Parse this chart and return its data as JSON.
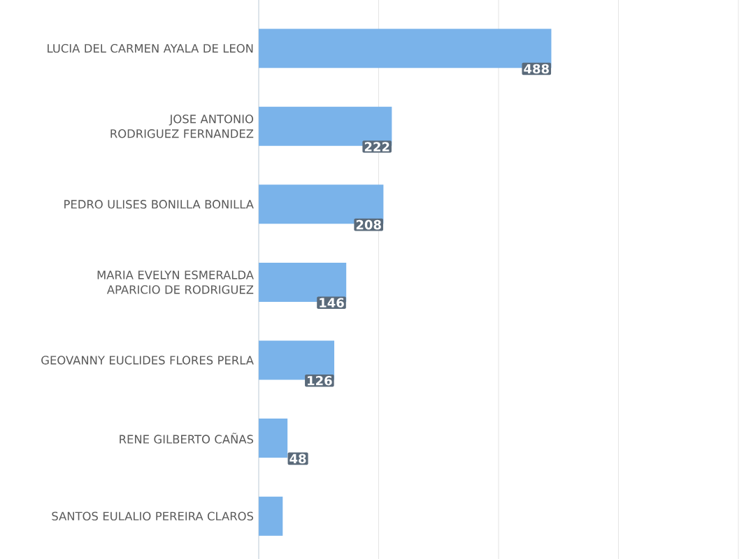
{
  "chart_data": {
    "type": "bar",
    "orientation": "horizontal",
    "categories": [
      "LUCIA DEL CARMEN AYALA DE LEON",
      "JOSE ANTONIO RODRIGUEZ FERNANDEZ",
      "PEDRO ULISES BONILLA BONILLA",
      "MARIA EVELYN ESMERALDA APARICIO DE RODRIGUEZ",
      "GEOVANNY EUCLIDES FLORES PERLA",
      "RENE GILBERTO CAÑAS",
      "SANTOS EULALIO PEREIRA CLAROS"
    ],
    "values": [
      488,
      222,
      208,
      146,
      126,
      48,
      40
    ],
    "value_labels": [
      "488",
      "222",
      "208",
      "146",
      "126",
      "48",
      null
    ],
    "color": "#7ab3ea",
    "xlim": [
      0,
      800
    ],
    "xticks": [
      {
        "value": 0,
        "label": null
      },
      {
        "value": 200,
        "label": null
      },
      {
        "value": 400,
        "label": null
      },
      {
        "value": 600,
        "label": null
      },
      {
        "value": 800,
        "label": null
      }
    ],
    "tick_labels": "y",
    "grid": "x"
  }
}
